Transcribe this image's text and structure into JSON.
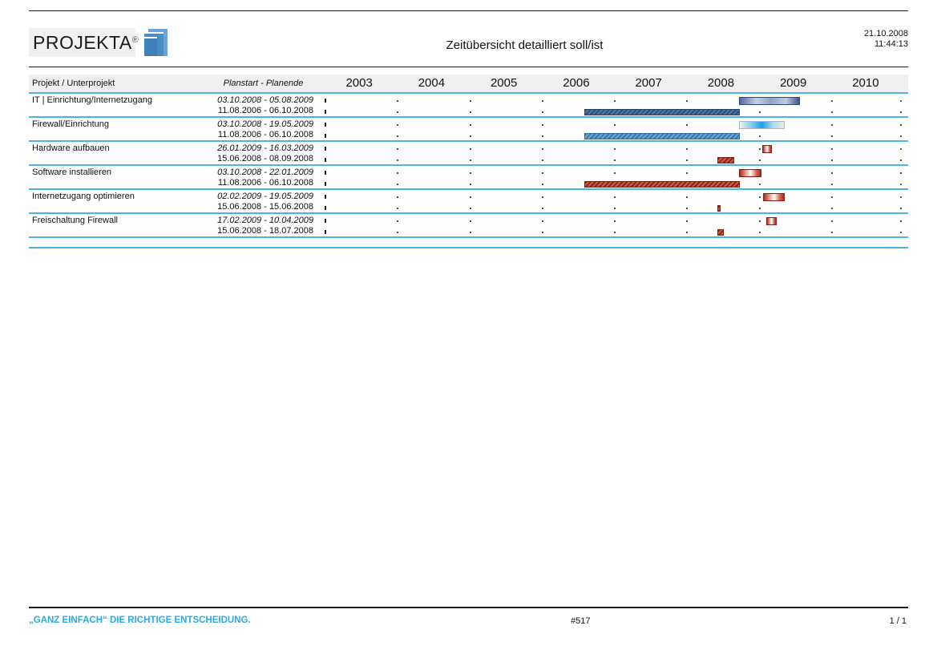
{
  "header": {
    "logo_text": "PROJEKTA",
    "logo_reg": "®",
    "title": "Zeitübersicht detailliert soll/ist",
    "date": "21.10.2008",
    "time": "11:44:13"
  },
  "table": {
    "col1_header": "Projekt / Unterprojekt",
    "col2_header": "Planstart - Planende",
    "years": [
      "2003",
      "2004",
      "2005",
      "2006",
      "2007",
      "2008",
      "2009",
      "2010"
    ]
  },
  "chart_data": {
    "type": "gantt",
    "timeline": {
      "start_year": 2003,
      "end_year": 2011,
      "tick_unit": "year"
    },
    "rows": [
      {
        "name": "IT | Einrichtung/Internetzugang",
        "soll": "03.10.2008 - 05.08.2009",
        "ist": "11.08.2006 - 06.10.2008",
        "soll_style": "navy",
        "ist_style": "navy"
      },
      {
        "name": "Firewall/Einrichtung",
        "soll": "03.10.2008 - 19.05.2009",
        "ist": "11.08.2006 - 06.10.2008",
        "soll_style": "cyan",
        "ist_style": "blue"
      },
      {
        "name": "Hardware aufbauen",
        "soll": "26.01.2009 - 16.03.2009",
        "ist": "15.06.2008 - 08.09.2008",
        "soll_style": "red",
        "ist_style": "red"
      },
      {
        "name": "Software installieren",
        "soll": "03.10.2008 - 22.01.2009",
        "ist": "11.08.2006 - 06.10.2008",
        "soll_style": "red",
        "ist_style": "red"
      },
      {
        "name": "Internetzugang optimieren",
        "soll": "02.02.2009 - 19.05.2009",
        "ist": "15.06.2008 - 15.06.2008",
        "soll_style": "red",
        "ist_style": "red"
      },
      {
        "name": "Freischaltung Firewall",
        "soll": "17.02.2009 - 10.04.2009",
        "ist": "15.06.2008 - 18.07.2008",
        "soll_style": "red",
        "ist_style": "red"
      }
    ]
  },
  "colors": {
    "separator_blue": "#4fb2e8",
    "slogan_blue": "#29abe2",
    "soll_navy": "#3e5488",
    "soll_cyan": "#1fa0e8",
    "soll_red": "#9e2c1e",
    "ist_navy": "#2e4f7a",
    "ist_blue": "#3579ab",
    "ist_red": "#8e2318",
    "header_bg": "#f0f0f0"
  },
  "footer": {
    "slogan": "„GANZ EINFACH“ DIE RICHTIGE ENTSCHEIDUNG.",
    "report_id": "#517",
    "page": "1 / 1"
  }
}
